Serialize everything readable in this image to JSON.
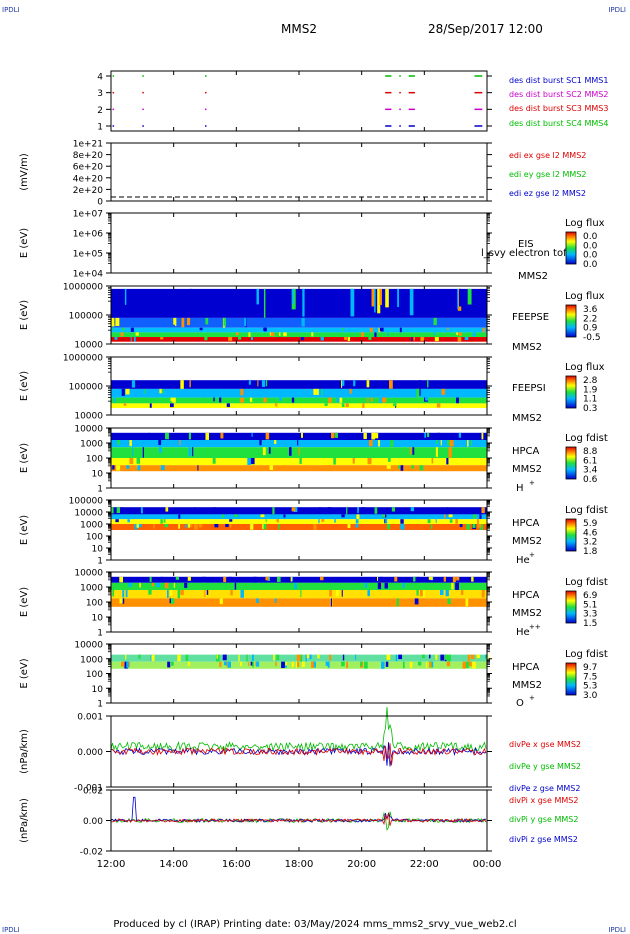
{
  "corner_tag": "IPDLI",
  "header": {
    "spacecraft": "MMS2",
    "date_time": "28/Sep/2017 12:00"
  },
  "footer": {
    "text": "Produced by cl (IRAP)   Printing date: 03/May/2024   mms_mms2_srvy_vue_web2.cl"
  },
  "chart_data": {
    "type": "multi-panel spectrogram / line time series",
    "x_axis": {
      "ticks": [
        "12:00",
        "14:00",
        "16:00",
        "18:00",
        "20:00",
        "22:00",
        "00:00"
      ],
      "range_hours": [
        12,
        24
      ]
    },
    "panels": [
      {
        "id": "burst",
        "type": "scatter",
        "ylabel": "",
        "yticks": [
          "4",
          "3",
          "2",
          "1"
        ],
        "series": [
          {
            "name": "des dist burst SC1 MMS1",
            "color": "#0000cc",
            "level": 1,
            "segments": [
              [
                12.05,
                12.08
              ],
              [
                13.0,
                13.03
              ],
              [
                15.0,
                15.03
              ],
              [
                20.75,
                20.95
              ],
              [
                21.2,
                21.25
              ],
              [
                21.5,
                21.7
              ],
              [
                23.6,
                23.85
              ]
            ]
          },
          {
            "name": "des dist burst SC2 MMS2",
            "color": "#cc00cc",
            "level": 2,
            "segments": [
              [
                12.05,
                12.08
              ],
              [
                13.0,
                13.03
              ],
              [
                15.0,
                15.03
              ],
              [
                20.75,
                20.95
              ],
              [
                21.2,
                21.25
              ],
              [
                21.5,
                21.7
              ],
              [
                23.6,
                23.85
              ]
            ]
          },
          {
            "name": "des dist burst SC3 MMS3",
            "color": "#dd0000",
            "level": 3,
            "segments": [
              [
                12.05,
                12.08
              ],
              [
                13.0,
                13.03
              ],
              [
                15.0,
                15.03
              ],
              [
                20.75,
                20.95
              ],
              [
                21.2,
                21.25
              ],
              [
                21.5,
                21.7
              ],
              [
                23.6,
                23.85
              ]
            ]
          },
          {
            "name": "des dist burst SC4 MMS4",
            "color": "#00bb00",
            "level": 4,
            "segments": [
              [
                12.05,
                12.08
              ],
              [
                13.0,
                13.03
              ],
              [
                15.0,
                15.03
              ],
              [
                20.75,
                20.95
              ],
              [
                21.2,
                21.25
              ],
              [
                21.5,
                21.7
              ],
              [
                23.6,
                23.85
              ]
            ]
          }
        ]
      },
      {
        "id": "edi",
        "type": "line",
        "ylabel": "(mV/m)",
        "yticks": [
          "1e+21",
          "8e+20",
          "6e+20",
          "4e+20",
          "2e+20",
          "0"
        ],
        "series": [
          {
            "name": "edi ex gse l2 MMS2",
            "color": "#dd0000"
          },
          {
            "name": "edi ey gse l2 MMS2",
            "color": "#00bb00"
          },
          {
            "name": "edi ez gse l2 MMS2",
            "color": "#0000cc"
          }
        ]
      },
      {
        "id": "eis",
        "type": "heatmap",
        "ylabel": "E (eV)",
        "yticks": [
          "1e+07",
          "1e+06",
          "1e+05",
          "1e+04"
        ],
        "labels": [
          "EIS",
          "MMS2"
        ],
        "overlay": "l_svy electron tof",
        "colorbar": {
          "title": "Log flux",
          "ticks": [
            "0.0",
            "0.0",
            "0.0",
            "0.0"
          ]
        }
      },
      {
        "id": "feepse",
        "type": "heatmap",
        "ylabel": "E (eV)",
        "yticks": [
          "1000000",
          "100000",
          "10000"
        ],
        "labels": [
          "FEEPSE",
          "MMS2"
        ],
        "colorbar": {
          "title": "Log flux",
          "ticks": [
            "3.6",
            "2.2",
            "0.9",
            "-0.5"
          ]
        }
      },
      {
        "id": "feepsi",
        "type": "heatmap",
        "ylabel": "E (eV)",
        "yticks": [
          "1000000",
          "100000",
          "10000"
        ],
        "labels": [
          "FEEPSI",
          "MMS2"
        ],
        "colorbar": {
          "title": "Log flux",
          "ticks": [
            "2.8",
            "1.9",
            "1.1",
            "0.3"
          ]
        }
      },
      {
        "id": "hpca_h",
        "type": "heatmap",
        "ylabel": "E (eV)",
        "yticks": [
          "10000",
          "1000",
          "100",
          "10",
          "1"
        ],
        "labels": [
          "HPCA",
          "MMS2"
        ],
        "species": "H",
        "charge": "+",
        "colorbar": {
          "title": "Log fdist",
          "ticks": [
            "8.8",
            "6.1",
            "3.4",
            "0.6"
          ]
        }
      },
      {
        "id": "hpca_he",
        "type": "heatmap",
        "ylabel": "E (eV)",
        "yticks": [
          "100000",
          "10000",
          "1000",
          "100",
          "10",
          "1"
        ],
        "labels": [
          "HPCA",
          "MMS2"
        ],
        "species": "He",
        "charge": "+",
        "colorbar": {
          "title": "Log fdist",
          "ticks": [
            "5.9",
            "4.6",
            "3.2",
            "1.8"
          ]
        }
      },
      {
        "id": "hpca_he2",
        "type": "heatmap",
        "ylabel": "E (eV)",
        "yticks": [
          "10000",
          "1000",
          "100",
          "10",
          "1"
        ],
        "labels": [
          "HPCA",
          "MMS2"
        ],
        "species": "He",
        "charge": "++",
        "colorbar": {
          "title": "Log fdist",
          "ticks": [
            "6.9",
            "5.1",
            "3.3",
            "1.5"
          ]
        }
      },
      {
        "id": "hpca_o",
        "type": "heatmap",
        "ylabel": "E (eV)",
        "yticks": [
          "10000",
          "1000",
          "100",
          "10",
          "1"
        ],
        "labels": [
          "HPCA",
          "MMS2"
        ],
        "species": "O",
        "charge": "+",
        "colorbar": {
          "title": "Log fdist",
          "ticks": [
            "9.7",
            "7.5",
            "5.3",
            "3.0"
          ]
        }
      },
      {
        "id": "divpe",
        "type": "line",
        "ylabel": "(nPa/km)",
        "yticks": [
          "0.001",
          "0.000",
          "-0.001"
        ],
        "ylim": [
          -0.0015,
          0.0015
        ],
        "series": [
          {
            "name": "divPe x gse MMS2",
            "color": "#dd0000"
          },
          {
            "name": "divPe y gse MMS2",
            "color": "#00bb00"
          },
          {
            "name": "divPe z gse MMS2",
            "color": "#0000cc"
          }
        ]
      },
      {
        "id": "divpi",
        "type": "line",
        "ylabel": "(nPa/km)",
        "yticks": [
          "0.02",
          "0.00",
          "-0.02"
        ],
        "ylim": [
          -0.03,
          0.03
        ],
        "series": [
          {
            "name": "divPi x gse MMS2",
            "color": "#dd0000"
          },
          {
            "name": "divPi y gse MMS2",
            "color": "#00bb00"
          },
          {
            "name": "divPi z gse MMS2",
            "color": "#0000cc"
          }
        ]
      }
    ]
  }
}
